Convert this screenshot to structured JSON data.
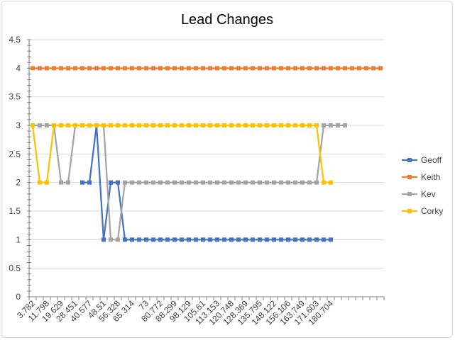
{
  "chart_data": {
    "type": "line",
    "title": "Lead Changes",
    "xlabel": "",
    "ylabel": "",
    "ylim": [
      0,
      4.5
    ],
    "y_ticks": [
      "0",
      "0.5",
      "1",
      "1.5",
      "2",
      "2.5",
      "3",
      "3.5",
      "4",
      "4.5"
    ],
    "x_tick_labels": [
      "3.782",
      "11.798",
      "19.629",
      "28.451",
      "40.577",
      "48.51",
      "56.328",
      "65.314",
      "73",
      "80.772",
      "88.299",
      "98.129",
      "105.61",
      "113.153",
      "120.748",
      "128.369",
      "135.795",
      "148.122",
      "156.106",
      "163.749",
      "171.603",
      "180.704"
    ],
    "grid": "horizontal",
    "legend_position": "right",
    "series": [
      {
        "name": "Geoff",
        "color": "#4472C4",
        "values": [
          null,
          null,
          null,
          null,
          null,
          4,
          null,
          2,
          2,
          3,
          1,
          2,
          2,
          1,
          1,
          1,
          1,
          1,
          1,
          1,
          1,
          1,
          1,
          1,
          1,
          1,
          1,
          1,
          1,
          1,
          1,
          1,
          1,
          1,
          1,
          1,
          1,
          1,
          1,
          1,
          1,
          1,
          1
        ]
      },
      {
        "name": "Keith",
        "color": "#ED7D31",
        "values": [
          4,
          4,
          4,
          4,
          4,
          4,
          4,
          4,
          4,
          4,
          4,
          4,
          4,
          4,
          4,
          4,
          4,
          4,
          4,
          4,
          4,
          4,
          4,
          4,
          4,
          4,
          4,
          4,
          4,
          4,
          4,
          4,
          4,
          4,
          4,
          4,
          4,
          4,
          4,
          4,
          4,
          4,
          4,
          4,
          4,
          4,
          4,
          4,
          4,
          4
        ]
      },
      {
        "name": "Kev",
        "color": "#A5A5A5",
        "values": [
          3,
          3,
          3,
          3,
          2,
          2,
          3,
          3,
          3,
          3,
          3,
          1,
          1,
          2,
          2,
          2,
          2,
          2,
          2,
          2,
          2,
          2,
          2,
          2,
          2,
          2,
          2,
          2,
          2,
          2,
          2,
          2,
          2,
          2,
          2,
          2,
          2,
          2,
          2,
          2,
          2,
          3,
          3,
          3,
          3
        ]
      },
      {
        "name": "Corky",
        "color": "#FFC000",
        "values": [
          3,
          2,
          2,
          3,
          3,
          3,
          3,
          3,
          3,
          3,
          3,
          3,
          3,
          3,
          3,
          3,
          3,
          3,
          3,
          3,
          3,
          3,
          3,
          3,
          3,
          3,
          3,
          3,
          3,
          3,
          3,
          3,
          3,
          3,
          3,
          3,
          3,
          3,
          3,
          3,
          3,
          2,
          2
        ]
      }
    ]
  }
}
